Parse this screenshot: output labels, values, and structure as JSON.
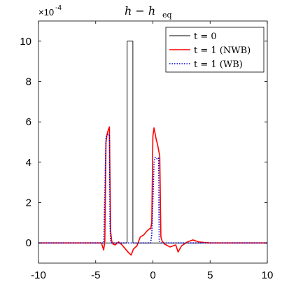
{
  "chart_data": {
    "type": "line",
    "title": "h − h_eq",
    "title_main": "h − h",
    "title_sub": "eq",
    "xlabel": "",
    "ylabel": "",
    "xlim": [
      -10,
      10
    ],
    "ylim": [
      -1,
      11
    ],
    "y_scale_label": "×10",
    "y_scale_exponent": "-4",
    "x_ticks": [
      -10,
      -5,
      0,
      5,
      10
    ],
    "x_tick_labels": [
      "-10",
      "-5",
      "0",
      "5",
      "10"
    ],
    "y_ticks": [
      0,
      2,
      4,
      6,
      8,
      10
    ],
    "y_tick_labels": [
      "0",
      "2",
      "4",
      "6",
      "8",
      "10"
    ],
    "grid": false,
    "legend_position": "top-right",
    "series": [
      {
        "name": "t = 0",
        "color": "#000000",
        "style": "solid",
        "x": [
          -10,
          -2.25,
          -2.25,
          -1.75,
          -1.75,
          10
        ],
        "y": [
          0,
          0,
          10,
          10,
          0,
          0
        ]
      },
      {
        "name": "t = 1 (NWB)",
        "color": "#ff0000",
        "style": "solid",
        "x": [
          -10,
          -4.5,
          -4.3,
          -4.2,
          -4.1,
          -4.0,
          -3.9,
          -3.8,
          -3.7,
          -3.6,
          -3.5,
          -3.3,
          -3.0,
          -2.7,
          -2.4,
          -2.1,
          -1.9,
          -1.7,
          -1.4,
          -1.1,
          -0.8,
          -0.5,
          -0.3,
          -0.2,
          -0.1,
          0.0,
          0.1,
          0.2,
          0.3,
          0.4,
          0.5,
          0.6,
          0.7,
          0.8,
          1.0,
          1.5,
          2.0,
          2.2,
          2.5,
          3.0,
          3.5,
          4.0,
          4.5,
          5.0,
          10
        ],
        "y": [
          0,
          0,
          -0.35,
          0.1,
          5.0,
          5.4,
          5.6,
          5.75,
          0.6,
          0.1,
          -0.05,
          -0.1,
          0.05,
          -0.1,
          -0.3,
          -0.5,
          -0.6,
          -0.3,
          -0.15,
          0.3,
          0.4,
          0.6,
          0.7,
          0.7,
          1.0,
          5.3,
          5.7,
          5.4,
          5.1,
          4.9,
          4.6,
          4.3,
          0.3,
          0.1,
          -0.05,
          -0.2,
          -0.1,
          -0.45,
          -0.15,
          0.05,
          0.15,
          0.05,
          0.02,
          0,
          0
        ]
      },
      {
        "name": "t = 1 (WB)",
        "color": "#0000cc",
        "style": "dotted",
        "x": [
          -10,
          -4.3,
          -4.1,
          -4.0,
          -3.9,
          -3.8,
          -3.75,
          -3.7,
          -3.6,
          -0.5,
          -0.2,
          -0.1,
          0.0,
          0.1,
          0.2,
          0.3,
          0.4,
          0.5,
          0.55,
          0.7,
          10
        ],
        "y": [
          0,
          0,
          5.25,
          5.35,
          5.4,
          5.3,
          1.0,
          0.05,
          0,
          0,
          0,
          0.4,
          2.0,
          4.0,
          4.25,
          4.2,
          4.15,
          4.2,
          0.1,
          0,
          0
        ]
      }
    ]
  }
}
